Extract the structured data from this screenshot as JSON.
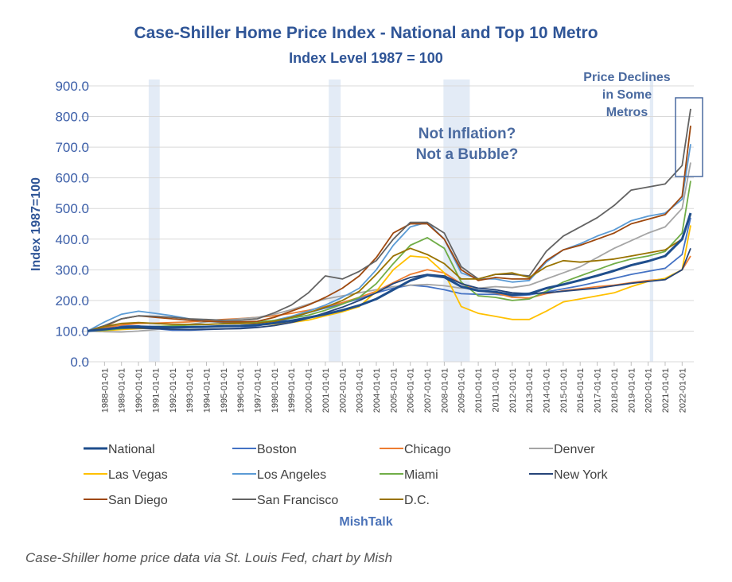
{
  "chart_data": {
    "type": "line",
    "title": "Case-Shiller Home Price Index - National and Top 10 Metro",
    "subtitle": "Index Level 1987 = 100",
    "ylabel": "Index 1987=100",
    "xlabel": "",
    "ylim": [
      0,
      900
    ],
    "yticks": [
      0,
      100,
      200,
      300,
      400,
      500,
      600,
      700,
      800,
      900
    ],
    "ytick_labels": [
      "0.0",
      "100.0",
      "200.0",
      "300.0",
      "400.0",
      "500.0",
      "600.0",
      "700.0",
      "800.0",
      "900.0"
    ],
    "xlim": [
      1987,
      2022.5
    ],
    "xtick_labels": [
      "1988-01-01",
      "1989-01-01",
      "1990-01-01",
      "1991-01-01",
      "1992-01-01",
      "1993-01-01",
      "1994-01-01",
      "1995-01-01",
      "1996-01-01",
      "1997-01-01",
      "1998-01-01",
      "1999-01-01",
      "2000-01-01",
      "2001-01-01",
      "2002-01-01",
      "2003-01-01",
      "2004-01-01",
      "2005-01-01",
      "2006-01-01",
      "2007-01-01",
      "2008-01-01",
      "2009-01-01",
      "2010-01-01",
      "2011-01-01",
      "2012-01-01",
      "2013-01-01",
      "2014-01-01",
      "2015-01-01",
      "2016-01-01",
      "2017-01-01",
      "2018-01-01",
      "2019-01-01",
      "2020-01-01",
      "2021-01-01",
      "2022-01-01"
    ],
    "grid": true,
    "legend_position": "bottom",
    "recession_bands": [
      [
        1990.6,
        1991.25
      ],
      [
        2001.2,
        2001.9
      ],
      [
        2007.95,
        2009.5
      ],
      [
        2020.1,
        2020.3
      ]
    ],
    "x": [
      1987,
      1988,
      1989,
      1990,
      1991,
      1992,
      1993,
      1994,
      1995,
      1996,
      1997,
      1998,
      1999,
      2000,
      2001,
      2002,
      2003,
      2004,
      2005,
      2006,
      2007,
      2008,
      2009,
      2010,
      2011,
      2012,
      2013,
      2014,
      2015,
      2016,
      2017,
      2018,
      2019,
      2020,
      2021,
      2022,
      2022.5
    ],
    "series": [
      {
        "name": "National",
        "color": "#1f4e8c",
        "values": [
          100,
          106,
          112,
          115,
          113,
          112,
          113,
          114,
          116,
          117,
          120,
          126,
          134,
          144,
          155,
          168,
          184,
          205,
          235,
          265,
          283,
          276,
          245,
          232,
          228,
          218,
          222,
          240,
          252,
          266,
          281,
          297,
          315,
          328,
          345,
          400,
          485
        ]
      },
      {
        "name": "Boston",
        "color": "#4472c4",
        "values": [
          100,
          115,
          118,
          117,
          108,
          103,
          103,
          105,
          107,
          110,
          117,
          128,
          143,
          160,
          175,
          190,
          205,
          225,
          240,
          250,
          245,
          235,
          222,
          220,
          220,
          215,
          218,
          228,
          238,
          248,
          260,
          272,
          285,
          295,
          305,
          350,
          470
        ]
      },
      {
        "name": "Chicago",
        "color": "#ed7d31",
        "values": [
          100,
          110,
          120,
          125,
          126,
          128,
          130,
          134,
          138,
          141,
          145,
          150,
          158,
          168,
          180,
          193,
          210,
          230,
          258,
          285,
          300,
          290,
          255,
          232,
          225,
          210,
          208,
          222,
          232,
          238,
          245,
          250,
          258,
          265,
          270,
          300,
          345
        ]
      },
      {
        "name": "Denver",
        "color": "#a5a5a5",
        "values": [
          100,
          98,
          97,
          100,
          105,
          112,
          122,
          130,
          135,
          140,
          145,
          155,
          170,
          188,
          205,
          215,
          225,
          235,
          245,
          250,
          252,
          248,
          240,
          240,
          245,
          242,
          250,
          270,
          290,
          310,
          340,
          370,
          395,
          420,
          440,
          500,
          650
        ]
      },
      {
        "name": "Las Vegas",
        "color": "#ffc000",
        "values": [
          100,
          102,
          105,
          108,
          110,
          112,
          113,
          115,
          117,
          118,
          120,
          123,
          128,
          136,
          150,
          163,
          180,
          230,
          300,
          345,
          340,
          290,
          180,
          158,
          148,
          138,
          138,
          165,
          195,
          205,
          215,
          225,
          245,
          262,
          272,
          300,
          445
        ]
      },
      {
        "name": "Los Angeles",
        "color": "#5b9bd5",
        "values": [
          100,
          130,
          155,
          165,
          158,
          150,
          140,
          132,
          128,
          125,
          126,
          135,
          148,
          165,
          185,
          210,
          240,
          300,
          380,
          440,
          455,
          400,
          290,
          270,
          270,
          260,
          265,
          325,
          365,
          385,
          410,
          430,
          460,
          475,
          485,
          530,
          710
        ]
      },
      {
        "name": "Miami",
        "color": "#70ad47",
        "values": [
          100,
          103,
          108,
          112,
          115,
          117,
          120,
          122,
          124,
          127,
          130,
          135,
          142,
          152,
          168,
          188,
          210,
          255,
          320,
          380,
          405,
          370,
          260,
          215,
          210,
          200,
          205,
          230,
          260,
          280,
          300,
          320,
          335,
          345,
          360,
          420,
          590
        ]
      },
      {
        "name": "New York",
        "color": "#264478",
        "values": [
          100,
          107,
          110,
          110,
          108,
          106,
          105,
          106,
          107,
          108,
          112,
          118,
          128,
          142,
          160,
          178,
          200,
          225,
          255,
          275,
          285,
          280,
          255,
          240,
          235,
          225,
          222,
          225,
          230,
          235,
          240,
          248,
          256,
          262,
          268,
          300,
          370
        ]
      },
      {
        "name": "San Diego",
        "color": "#9e480e",
        "values": [
          100,
          115,
          140,
          150,
          145,
          140,
          135,
          132,
          130,
          130,
          132,
          145,
          165,
          185,
          210,
          240,
          280,
          340,
          420,
          450,
          450,
          400,
          300,
          265,
          275,
          270,
          270,
          330,
          365,
          380,
          400,
          420,
          450,
          465,
          480,
          540,
          770
        ]
      },
      {
        "name": "San Francisco",
        "color": "#636363",
        "values": [
          100,
          118,
          140,
          150,
          148,
          145,
          140,
          138,
          135,
          135,
          140,
          160,
          185,
          225,
          280,
          270,
          295,
          330,
          400,
          455,
          455,
          420,
          310,
          270,
          285,
          285,
          280,
          360,
          410,
          440,
          470,
          510,
          560,
          570,
          580,
          640,
          825
        ]
      },
      {
        "name": "D.C.",
        "color": "#997300",
        "values": [
          100,
          115,
          125,
          128,
          125,
          122,
          122,
          122,
          124,
          125,
          126,
          132,
          145,
          160,
          178,
          200,
          230,
          285,
          345,
          370,
          350,
          320,
          270,
          270,
          285,
          290,
          275,
          310,
          330,
          325,
          330,
          335,
          345,
          355,
          365,
          400,
          480
        ]
      }
    ],
    "annotations": [
      {
        "lines": [
          "Not Inflation?",
          "Not a Bubble?"
        ]
      },
      {
        "lines": [
          "Price Declines",
          "in Some",
          "Metros"
        ]
      }
    ],
    "source_label": "MishTalk"
  },
  "caption": "Case-Shiller home price data via St. Louis Fed, chart by Mish",
  "colors": {
    "title": "#2f5597",
    "axis_text": "#3b5ea8",
    "annotation": "#4a6aa0",
    "grid": "#d9d9d9",
    "band": "#e3ebf6"
  }
}
